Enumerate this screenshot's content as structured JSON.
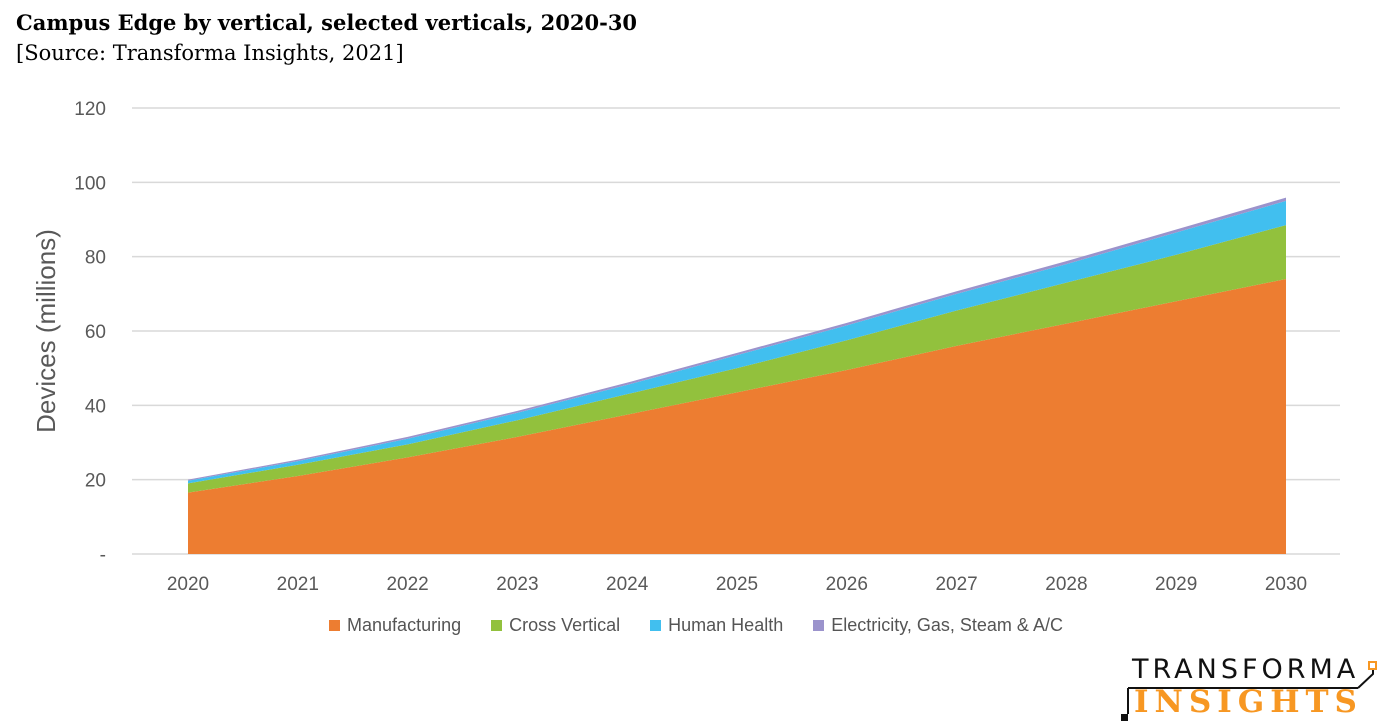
{
  "header": {
    "title": "Campus Edge by vertical, selected verticals, 2020-30",
    "source": "[Source: Transforma Insights, 2021]"
  },
  "logo": {
    "line1": "TRANSFORMA",
    "line2": "INSIGHTS",
    "accent_color": "#F79722"
  },
  "chart_data": {
    "type": "area",
    "stacked": true,
    "x": [
      "2020",
      "2021",
      "2022",
      "2023",
      "2024",
      "2025",
      "2026",
      "2027",
      "2028",
      "2029",
      "2030"
    ],
    "series": [
      {
        "name": "Manufacturing",
        "color": "#ED7D31",
        "values": [
          16.5,
          21,
          26,
          31.5,
          37.5,
          43.5,
          49.5,
          56,
          62,
          68,
          74
        ]
      },
      {
        "name": "Cross Vertical",
        "color": "#92C13D",
        "values": [
          2.5,
          3,
          3.5,
          4.5,
          5.5,
          6.5,
          8,
          9.5,
          11,
          12.5,
          14.5
        ]
      },
      {
        "name": "Human Health",
        "color": "#41BFEF",
        "values": [
          0.7,
          1,
          1.5,
          2,
          2.5,
          3.5,
          4,
          4.5,
          5,
          6,
          6.5
        ]
      },
      {
        "name": "Electricity, Gas, Steam & A/C",
        "color": "#9B93CC",
        "values": [
          0.3,
          0.4,
          0.5,
          0.5,
          0.6,
          0.6,
          0.7,
          0.7,
          0.8,
          0.8,
          0.9
        ]
      }
    ],
    "ylabel": "Devices (millions)",
    "xlabel": "",
    "ylim": [
      0,
      120
    ],
    "yticks": [
      "-",
      "20",
      "40",
      "60",
      "80",
      "100",
      "120"
    ],
    "ytick_values": [
      0,
      20,
      40,
      60,
      80,
      100,
      120
    ],
    "grid": true,
    "legend": "bottom"
  }
}
